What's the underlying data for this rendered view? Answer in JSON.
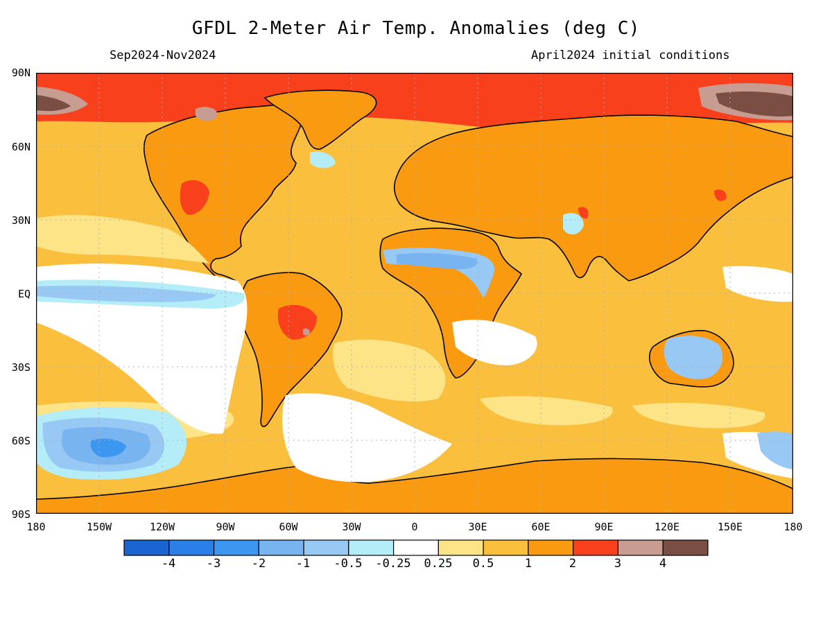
{
  "title": "GFDL 2-Meter Air Temp. Anomalies (deg C)",
  "subtitle_left": "Sep2024-Nov2024",
  "subtitle_right": "April2024 initial conditions",
  "lat_labels": [
    "90N",
    "60N",
    "30N",
    "EQ",
    "30S",
    "60S",
    "90S"
  ],
  "lon_labels": [
    "180",
    "150W",
    "120W",
    "90W",
    "60W",
    "30W",
    "0",
    "30E",
    "60E",
    "90E",
    "120E",
    "150E",
    "180"
  ],
  "legend": {
    "tick_labels": [
      "-4",
      "-3",
      "-2",
      "-1",
      "-0.5",
      "-0.25",
      "0.25",
      "0.5",
      "1",
      "2",
      "3",
      "4"
    ],
    "colors": [
      "#1a64d2",
      "#2a7fe8",
      "#3c97f0",
      "#78b4f0",
      "#98c8f4",
      "#b4ecf8",
      "#ffffff",
      "#fde487",
      "#fbbf3e",
      "#f99a10",
      "#f8401c",
      "#c79d91",
      "#7a4e43"
    ]
  },
  "map": {
    "ocean_base_color": "#fbbf3e",
    "land_base_color": "#f99a10",
    "coastline_color": "#000000",
    "gridline_color": "#b0b0b0"
  }
}
